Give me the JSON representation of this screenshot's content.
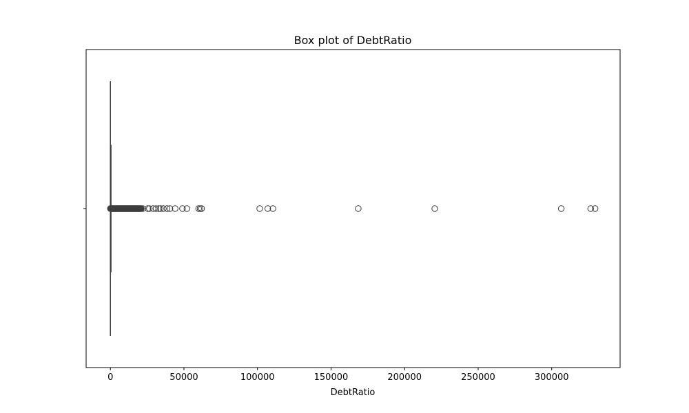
{
  "chart_data": {
    "type": "box",
    "orientation": "horizontal",
    "title": "Box plot of DebtRatio",
    "xlabel": "DebtRatio",
    "ylabel": "",
    "xlim": [
      -16500,
      346500
    ],
    "x_ticks": [
      0,
      50000,
      100000,
      150000,
      200000,
      250000,
      300000
    ],
    "x_tick_labels": [
      "0",
      "50000",
      "100000",
      "150000",
      "200000",
      "250000",
      "300000"
    ],
    "grid": false,
    "box": {
      "whisker_low": 0,
      "q1": 0.18,
      "median": 0.37,
      "q3": 0.87,
      "whisker_high": 1.9
    },
    "outliers_dense_range": [
      0,
      21000
    ],
    "outliers": [
      22000,
      25500,
      26500,
      29000,
      31000,
      33000,
      34000,
      36000,
      38500,
      40500,
      44000,
      49000,
      52000,
      60000,
      61000,
      62000,
      101500,
      107000,
      110500,
      168500,
      220500,
      306500,
      326500,
      329500
    ],
    "colors": {
      "line": "#3d3d3d",
      "box_fill": "#4c72b0",
      "background": "#ffffff"
    }
  }
}
